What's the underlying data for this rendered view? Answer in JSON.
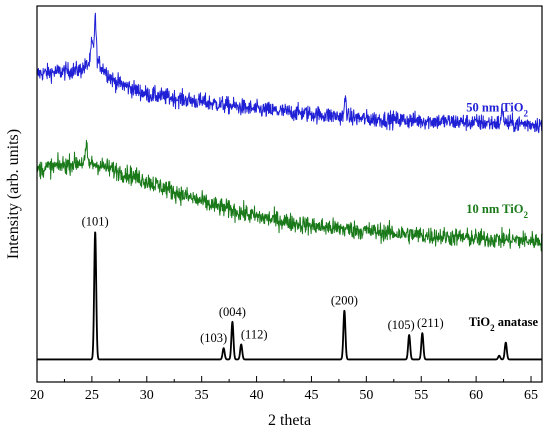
{
  "chart_data": {
    "type": "line",
    "xlabel": "2 theta",
    "ylabel": "Intensity (arb. units)",
    "xlim": [
      20,
      66
    ],
    "xticks": [
      20,
      25,
      30,
      35,
      40,
      45,
      50,
      55,
      60,
      65
    ],
    "y_tick_labels": false,
    "grid": false,
    "series": [
      {
        "name": "50 nm TiO2",
        "label_main": "50 nm TiO",
        "label_sub": "2",
        "color": "#1f1fd6",
        "style": "noisy",
        "baseline": [
          [
            20,
            0.82
          ],
          [
            24,
            0.83
          ],
          [
            25.3,
            0.86
          ],
          [
            27,
            0.8
          ],
          [
            30,
            0.765
          ],
          [
            35,
            0.745
          ],
          [
            40,
            0.725
          ],
          [
            45,
            0.713
          ],
          [
            50,
            0.7
          ],
          [
            55,
            0.695
          ],
          [
            60,
            0.69
          ],
          [
            66,
            0.685
          ]
        ],
        "spikes": [
          [
            25.3,
            0.11
          ],
          [
            25.0,
            0.05
          ],
          [
            48.1,
            0.05
          ],
          [
            62.4,
            0.04
          ]
        ],
        "noise": 0.022
      },
      {
        "name": "10 nm TiO2",
        "label_main": "10 nm TiO",
        "label_sub": "2",
        "color": "#1a7a1a",
        "style": "noisy",
        "baseline": [
          [
            20,
            0.565
          ],
          [
            22,
            0.575
          ],
          [
            24,
            0.585
          ],
          [
            25.5,
            0.578
          ],
          [
            28,
            0.555
          ],
          [
            30,
            0.535
          ],
          [
            33,
            0.5
          ],
          [
            36,
            0.47
          ],
          [
            40,
            0.44
          ],
          [
            45,
            0.415
          ],
          [
            50,
            0.402
          ],
          [
            55,
            0.39
          ],
          [
            60,
            0.382
          ],
          [
            66,
            0.375
          ]
        ],
        "spikes": [
          [
            24.5,
            0.04
          ]
        ],
        "noise": 0.024
      },
      {
        "name": "TiO2 anatase",
        "label_main": "TiO",
        "label_sub": "2",
        "label_tail": " anatase",
        "color": "#000000",
        "style": "peaks",
        "baseline_value": 0.06,
        "peaks": [
          {
            "hkl": "(101)",
            "x": 25.3,
            "height": 0.34
          },
          {
            "hkl": "(103)",
            "x": 37.0,
            "height": 0.03
          },
          {
            "hkl": "(004)",
            "x": 37.8,
            "height": 0.1
          },
          {
            "hkl": "(112)",
            "x": 38.6,
            "height": 0.04
          },
          {
            "hkl": "(200)",
            "x": 48.0,
            "height": 0.13
          },
          {
            "hkl": "(105)",
            "x": 53.9,
            "height": 0.065
          },
          {
            "hkl": "(211)",
            "x": 55.1,
            "height": 0.07
          },
          {
            "hkl": "",
            "x": 62.1,
            "height": 0.01
          },
          {
            "hkl": "",
            "x": 62.7,
            "height": 0.045
          }
        ]
      }
    ]
  }
}
